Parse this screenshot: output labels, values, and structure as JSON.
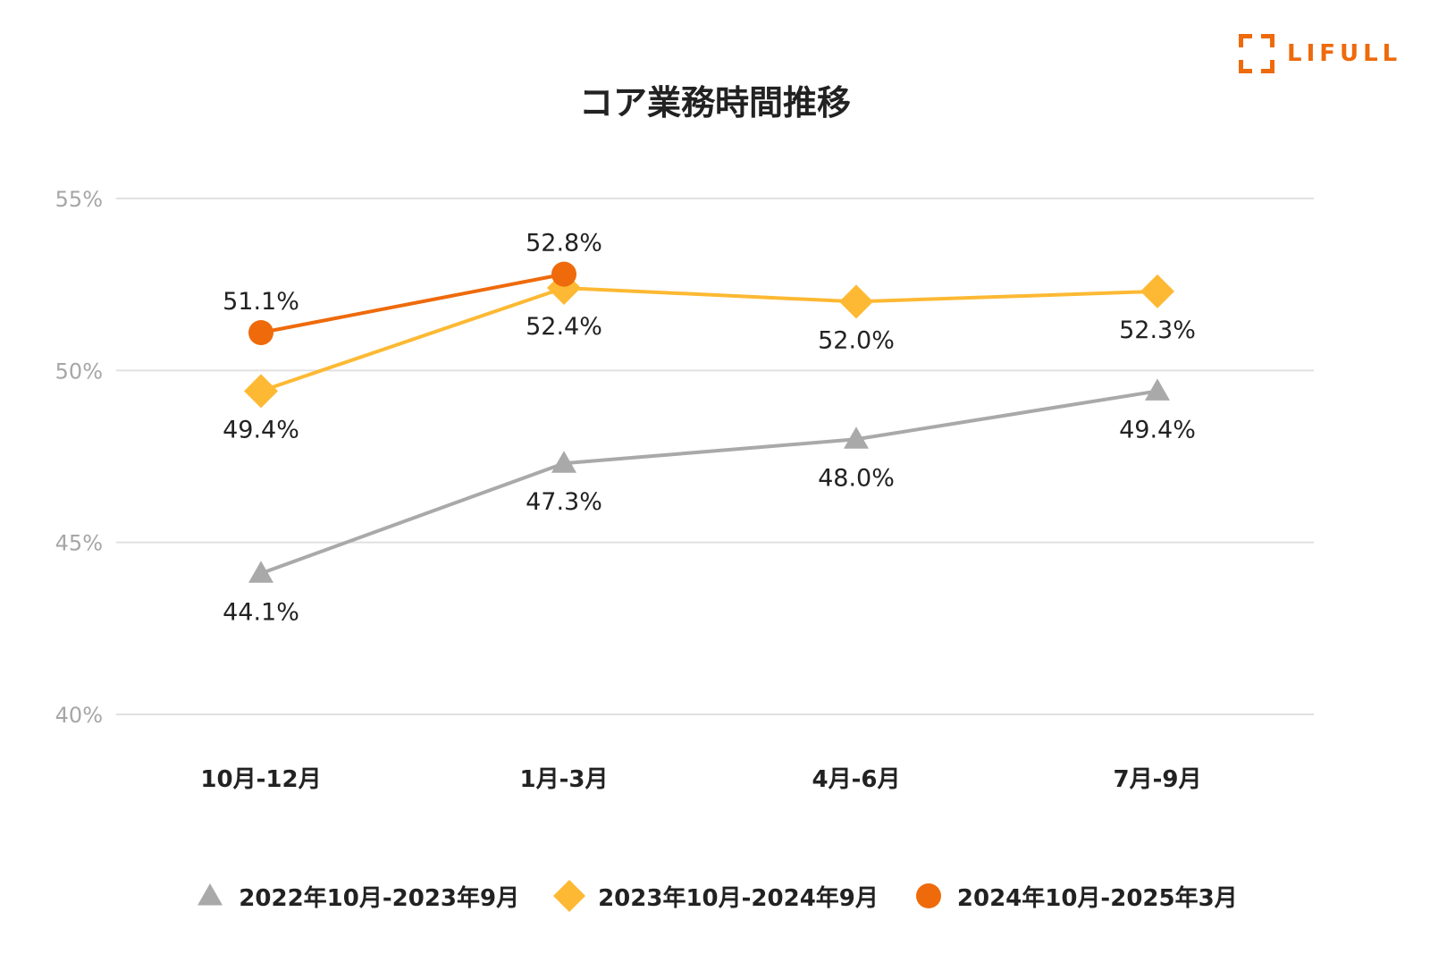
{
  "brand": {
    "logo_text": "LIFULL",
    "accent": "#ee6a0b"
  },
  "chart_data": {
    "type": "line",
    "title": "コア業務時間推移",
    "xlabel": "",
    "ylabel": "",
    "categories": [
      "10月-12月",
      "1月-3月",
      "4月-6月",
      "7月-9月"
    ],
    "y_ticks": [
      40,
      45,
      50,
      55
    ],
    "y_tick_labels": [
      "40%",
      "45%",
      "50%",
      "55%"
    ],
    "ylim": [
      40,
      55
    ],
    "grid": true,
    "legend_position": "bottom",
    "series": [
      {
        "name": "2022年10月-2023年9月",
        "marker": "triangle",
        "color": "#a9a9a9",
        "values": [
          44.1,
          47.3,
          48.0,
          49.4
        ],
        "labels": [
          "44.1%",
          "47.3%",
          "48.0%",
          "49.4%"
        ],
        "label_position": "below"
      },
      {
        "name": "2023年10月-2024年9月",
        "marker": "diamond",
        "color": "#fdb933",
        "values": [
          49.4,
          52.4,
          52.0,
          52.3
        ],
        "labels": [
          "49.4%",
          "52.4%",
          "52.0%",
          "52.3%"
        ],
        "label_position": "below"
      },
      {
        "name": "2024年10月-2025年3月",
        "marker": "circle",
        "color": "#ee6a0b",
        "values": [
          51.1,
          52.8,
          null,
          null
        ],
        "labels": [
          "51.1%",
          "52.8%",
          null,
          null
        ],
        "label_position": "above"
      }
    ]
  }
}
